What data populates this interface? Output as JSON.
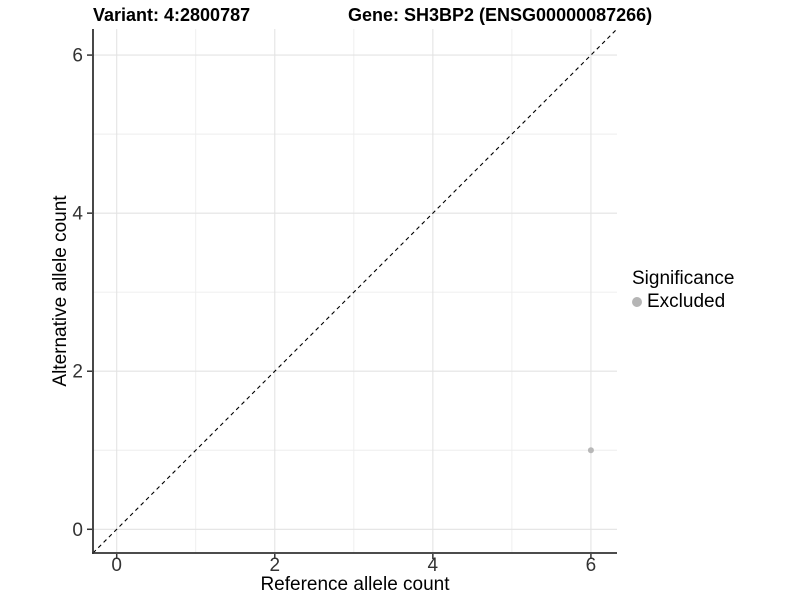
{
  "title": {
    "variant": "Variant: 4:2800787",
    "gene": "Gene: SH3BP2 (ENSG00000087266)"
  },
  "chart_data": {
    "type": "scatter",
    "xlabel": "Reference allele count",
    "ylabel": "Alternative allele count",
    "xlim": [
      -0.3,
      6.33
    ],
    "ylim": [
      -0.3,
      6.33
    ],
    "xticks": [
      0,
      2,
      4,
      6
    ],
    "yticks": [
      0,
      2,
      4,
      6
    ],
    "xminor": [
      1,
      3,
      5
    ],
    "yminor": [
      1,
      3,
      5
    ],
    "grid": "major+minor",
    "points": [
      {
        "x": 6,
        "y": 1,
        "series": "Excluded",
        "color": "#b8b8b8"
      }
    ],
    "reference_line": {
      "type": "identity",
      "style": "dashed",
      "color": "#000000",
      "from": [
        -0.3,
        -0.3
      ],
      "to": [
        6.33,
        6.33
      ]
    },
    "legend": {
      "title": "Significance",
      "position": "right",
      "items": [
        {
          "label": "Excluded",
          "color": "#b5b5b5"
        }
      ]
    },
    "colors": {
      "background": "#ffffff",
      "grid_major": "#e3e3e3",
      "grid_minor": "#ededed",
      "axis": "#333333",
      "tick_text": "#333333"
    }
  }
}
